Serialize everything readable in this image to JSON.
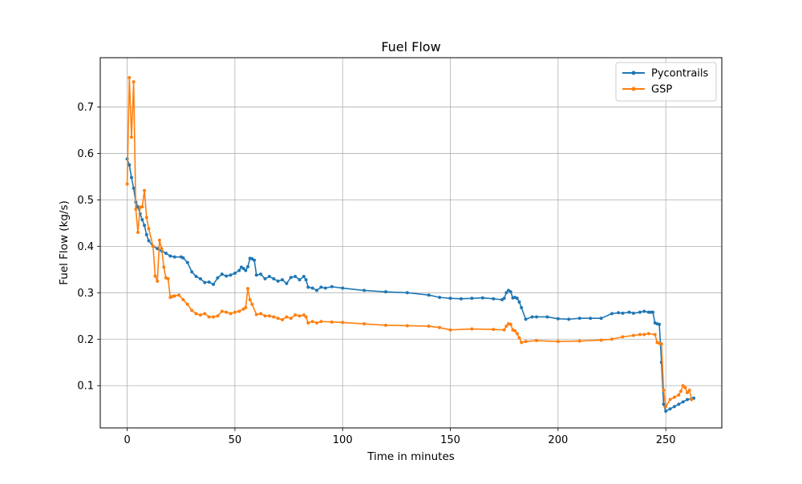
{
  "chart_data": {
    "type": "line",
    "title": "Fuel Flow",
    "xlabel": "Time in minutes",
    "ylabel": "Fuel Flow (kg/s)",
    "xlim": [
      -12.5,
      276
    ],
    "ylim": [
      0.009,
      0.806
    ],
    "xticks": [
      0,
      50,
      100,
      150,
      200,
      250
    ],
    "yticks": [
      0.1,
      0.2,
      0.3,
      0.4,
      0.5,
      0.6,
      0.7
    ],
    "grid": true,
    "legend_position": "top-right",
    "series": [
      {
        "name": "Pycontrails",
        "color": "#1f77b4",
        "x": [
          0,
          1,
          2,
          3,
          4,
          5,
          6,
          7,
          8,
          9,
          10,
          12,
          14,
          16,
          18,
          20,
          22,
          25,
          26,
          28,
          30,
          32,
          34,
          36,
          38,
          40,
          42,
          44,
          46,
          48,
          50,
          52,
          53,
          54,
          55,
          56,
          57,
          58,
          59,
          60,
          62,
          64,
          66,
          68,
          70,
          72,
          74,
          76,
          78,
          80,
          82,
          83,
          84,
          86,
          88,
          90,
          92,
          95,
          100,
          110,
          120,
          130,
          140,
          145,
          150,
          155,
          160,
          165,
          170,
          174,
          175,
          176,
          177,
          178,
          179,
          180,
          181,
          182,
          183,
          185,
          188,
          190,
          195,
          200,
          205,
          210,
          215,
          220,
          225,
          228,
          230,
          233,
          235,
          238,
          240,
          242,
          243,
          244,
          245,
          246,
          247,
          248,
          249,
          250,
          252,
          254,
          256,
          258,
          260,
          262,
          263
        ],
        "y": [
          0.588,
          0.575,
          0.548,
          0.525,
          0.495,
          0.485,
          0.47,
          0.457,
          0.445,
          0.425,
          0.412,
          0.4,
          0.395,
          0.39,
          0.385,
          0.379,
          0.377,
          0.377,
          0.375,
          0.365,
          0.345,
          0.335,
          0.33,
          0.322,
          0.323,
          0.318,
          0.332,
          0.34,
          0.336,
          0.338,
          0.342,
          0.348,
          0.355,
          0.352,
          0.348,
          0.356,
          0.374,
          0.373,
          0.37,
          0.338,
          0.34,
          0.33,
          0.335,
          0.33,
          0.325,
          0.328,
          0.32,
          0.333,
          0.335,
          0.328,
          0.335,
          0.328,
          0.312,
          0.31,
          0.305,
          0.312,
          0.31,
          0.313,
          0.31,
          0.305,
          0.302,
          0.3,
          0.295,
          0.29,
          0.288,
          0.287,
          0.288,
          0.289,
          0.287,
          0.285,
          0.288,
          0.3,
          0.305,
          0.302,
          0.289,
          0.29,
          0.288,
          0.28,
          0.268,
          0.243,
          0.248,
          0.248,
          0.248,
          0.244,
          0.243,
          0.245,
          0.245,
          0.245,
          0.255,
          0.257,
          0.256,
          0.258,
          0.256,
          0.258,
          0.26,
          0.258,
          0.258,
          0.258,
          0.235,
          0.233,
          0.232,
          0.15,
          0.06,
          0.045,
          0.05,
          0.055,
          0.06,
          0.065,
          0.07,
          0.072,
          0.073
        ]
      },
      {
        "name": "GSP",
        "color": "#ff7f0e",
        "x": [
          0,
          1,
          2,
          3,
          4,
          5,
          6,
          7,
          8,
          9,
          10,
          12,
          13,
          14,
          15,
          16,
          17,
          18,
          19,
          20,
          21,
          22,
          24,
          26,
          28,
          30,
          32,
          34,
          36,
          38,
          40,
          42,
          44,
          46,
          48,
          50,
          52,
          54,
          55,
          56,
          57,
          58,
          60,
          62,
          64,
          66,
          68,
          70,
          72,
          74,
          76,
          78,
          80,
          82,
          83,
          84,
          86,
          88,
          90,
          95,
          100,
          110,
          120,
          130,
          140,
          145,
          150,
          160,
          170,
          175,
          176,
          177,
          178,
          179,
          180,
          181,
          182,
          183,
          185,
          190,
          200,
          210,
          220,
          225,
          230,
          235,
          238,
          240,
          242,
          245,
          246,
          247,
          248,
          249,
          250,
          252,
          254,
          256,
          257,
          258,
          259,
          260,
          261,
          262
        ],
        "y": [
          0.534,
          0.763,
          0.635,
          0.754,
          0.48,
          0.43,
          0.484,
          0.485,
          0.52,
          0.462,
          0.438,
          0.4,
          0.336,
          0.325,
          0.413,
          0.395,
          0.355,
          0.332,
          0.33,
          0.29,
          0.292,
          0.293,
          0.295,
          0.285,
          0.275,
          0.262,
          0.255,
          0.252,
          0.255,
          0.248,
          0.248,
          0.25,
          0.26,
          0.258,
          0.255,
          0.258,
          0.26,
          0.265,
          0.268,
          0.309,
          0.285,
          0.275,
          0.253,
          0.255,
          0.25,
          0.25,
          0.248,
          0.245,
          0.242,
          0.248,
          0.245,
          0.252,
          0.25,
          0.252,
          0.248,
          0.235,
          0.238,
          0.235,
          0.238,
          0.237,
          0.236,
          0.233,
          0.23,
          0.229,
          0.228,
          0.225,
          0.22,
          0.222,
          0.221,
          0.22,
          0.228,
          0.233,
          0.232,
          0.22,
          0.218,
          0.212,
          0.203,
          0.193,
          0.195,
          0.197,
          0.195,
          0.196,
          0.198,
          0.2,
          0.205,
          0.208,
          0.21,
          0.21,
          0.212,
          0.21,
          0.193,
          0.191,
          0.19,
          0.09,
          0.055,
          0.07,
          0.075,
          0.08,
          0.088,
          0.1,
          0.096,
          0.085,
          0.09,
          0.07
        ]
      }
    ]
  }
}
